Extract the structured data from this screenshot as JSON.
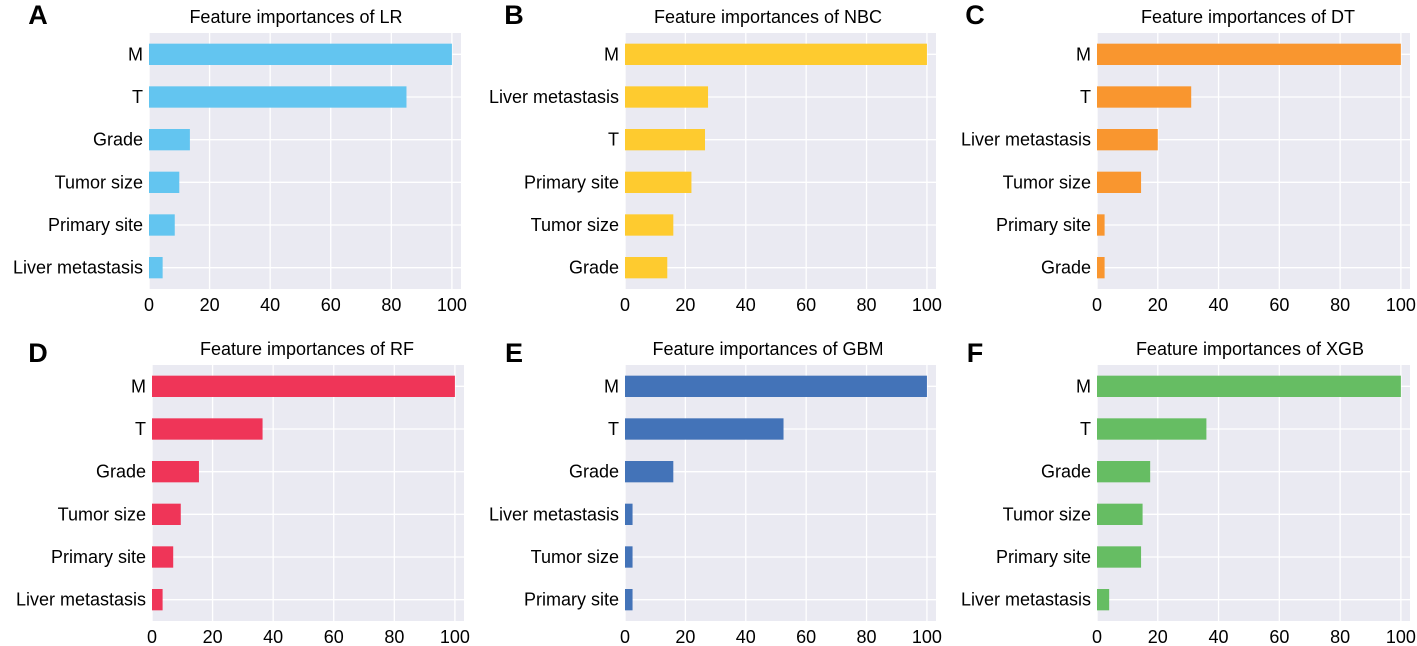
{
  "chart_data": [
    {
      "panel": "A",
      "type": "bar",
      "orientation": "horizontal",
      "title": "Feature importances of LR",
      "categories": [
        "M",
        "T",
        "Grade",
        "Tumor size",
        "Primary site",
        "Liver metastasis"
      ],
      "values": [
        100,
        85,
        13.5,
        10,
        8.5,
        4.5
      ],
      "color": "#63c5f0",
      "xlim": [
        0,
        103
      ],
      "xticks": [
        0,
        20,
        40,
        60,
        80,
        100
      ],
      "grid": true
    },
    {
      "panel": "B",
      "type": "bar",
      "orientation": "horizontal",
      "title": "Feature importances of NBC",
      "categories": [
        "M",
        "Liver metastasis",
        "T",
        "Primary site",
        "Tumor size",
        "Grade"
      ],
      "values": [
        100,
        27.5,
        26.5,
        22,
        16,
        14
      ],
      "color": "#fecb2f",
      "xlim": [
        0,
        103
      ],
      "xticks": [
        0,
        20,
        40,
        60,
        80,
        100
      ],
      "grid": true
    },
    {
      "panel": "C",
      "type": "bar",
      "orientation": "horizontal",
      "title": "Feature importances of DT",
      "categories": [
        "M",
        "T",
        "Liver metastasis",
        "Tumor size",
        "Primary site",
        "Grade"
      ],
      "values": [
        100,
        31,
        20,
        14.5,
        2.5,
        2.5
      ],
      "color": "#f9962f",
      "xlim": [
        0,
        103
      ],
      "xticks": [
        0,
        20,
        40,
        60,
        80,
        100
      ],
      "grid": true
    },
    {
      "panel": "D",
      "type": "bar",
      "orientation": "horizontal",
      "title": "Feature importances of RF",
      "categories": [
        "M",
        "T",
        "Grade",
        "Tumor size",
        "Primary site",
        "Liver metastasis"
      ],
      "values": [
        100,
        36.5,
        15.5,
        9.5,
        7,
        3.5
      ],
      "color": "#ef3558",
      "xlim": [
        0,
        103
      ],
      "xticks": [
        0,
        20,
        40,
        60,
        80,
        100
      ],
      "grid": true
    },
    {
      "panel": "E",
      "type": "bar",
      "orientation": "horizontal",
      "title": "Feature importances of GBM",
      "categories": [
        "M",
        "T",
        "Grade",
        "Liver metastasis",
        "Tumor size",
        "Primary site"
      ],
      "values": [
        100,
        52.5,
        16,
        2.5,
        2.5,
        2.5
      ],
      "color": "#4373b8",
      "xlim": [
        0,
        103
      ],
      "xticks": [
        0,
        20,
        40,
        60,
        80,
        100
      ],
      "grid": true
    },
    {
      "panel": "F",
      "type": "bar",
      "orientation": "horizontal",
      "title": "Feature importances of XGB",
      "categories": [
        "M",
        "T",
        "Grade",
        "Tumor size",
        "Primary site",
        "Liver metastasis"
      ],
      "values": [
        100,
        36,
        17.5,
        15,
        14.5,
        4
      ],
      "color": "#66bd63",
      "xlim": [
        0,
        103
      ],
      "xticks": [
        0,
        20,
        40,
        60,
        80,
        100
      ],
      "grid": true
    }
  ],
  "style": {
    "plot_background": "#eaeaf2",
    "grid_color": "#ffffff"
  }
}
